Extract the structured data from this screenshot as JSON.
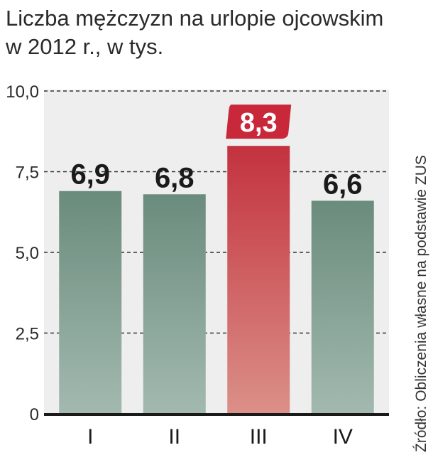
{
  "title": "Liczba mężczyzn na urlopie ojcowskim w 2012 r., w tys.",
  "source": "Źródło: Obliczenia własne na podstawie ZUS",
  "chart_data": {
    "type": "bar",
    "title": "Liczba mężczyzn na urlopie ojcowskim w 2012 r., w tys.",
    "xlabel": "",
    "ylabel": "",
    "categories": [
      "I",
      "II",
      "III",
      "IV"
    ],
    "values": [
      6.9,
      6.8,
      8.3,
      6.6
    ],
    "value_labels": [
      "6,9",
      "6,8",
      "8,3",
      "6,6"
    ],
    "highlight_index": 2,
    "ylim": [
      0,
      10
    ],
    "yticks": [
      0,
      2.5,
      5,
      7.5,
      10
    ],
    "ytick_labels": [
      "0",
      "2,5",
      "5,0",
      "7,5",
      "10,0"
    ],
    "grid": true,
    "legend": "none",
    "colors": {
      "normal_top": "#6a8c7c",
      "normal_bottom": "#a3b9b0",
      "highlight_top": "#c3323e",
      "highlight_bottom": "#db9088",
      "highlight_badge": "#c8283a",
      "plot_bg": "#eeeeee",
      "grid": "#333333",
      "baseline": "#1a1a1a"
    }
  }
}
